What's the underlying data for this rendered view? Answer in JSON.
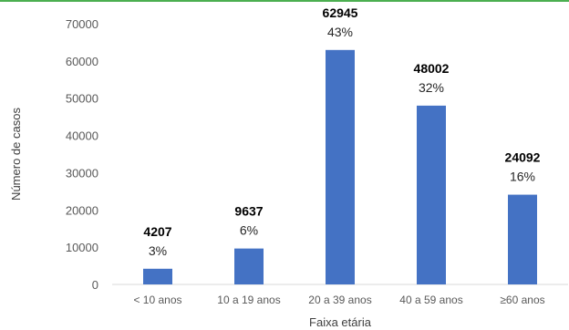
{
  "chart_data": {
    "type": "bar",
    "xlabel": "Faixa etária",
    "ylabel": "Número de casos",
    "ylim": [
      0,
      70000
    ],
    "yticks": [
      0,
      10000,
      20000,
      30000,
      40000,
      50000,
      60000,
      70000
    ],
    "grid": false,
    "categories": [
      "< 10 anos",
      "10 a 19 anos",
      "20 a 39 anos",
      "40 a 59 anos",
      "≥60 anos"
    ],
    "values": [
      4207,
      9637,
      62945,
      48002,
      24092
    ],
    "value_labels": [
      "4207",
      "9637",
      "62945",
      "48002",
      "24092"
    ],
    "percent_labels": [
      "3%",
      "6%",
      "43%",
      "32%",
      "16%"
    ],
    "colors": {
      "bar": "#4472C4",
      "axis": "#D9D9D9",
      "top_rule": "#4CAF50"
    }
  }
}
